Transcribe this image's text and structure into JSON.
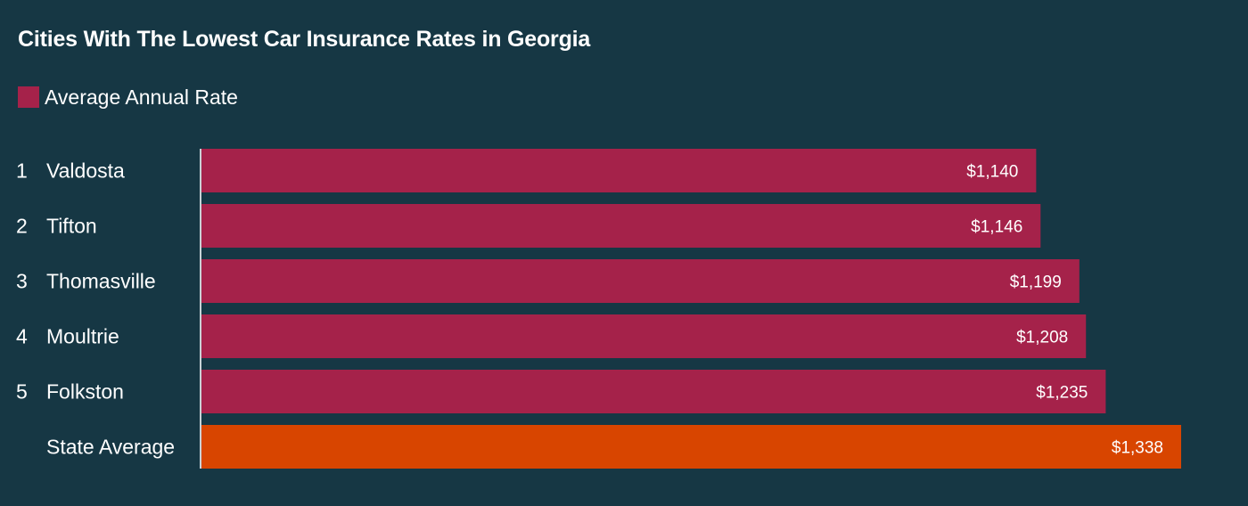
{
  "chart_data": {
    "type": "bar",
    "orientation": "horizontal",
    "title": "Cities With The Lowest Car Insurance Rates in Georgia",
    "legend": [
      {
        "label": "Average Annual Rate",
        "color": "#a5224a"
      }
    ],
    "legend_placement": "top-left",
    "grid": false,
    "categories": [
      "Valdosta",
      "Tifton",
      "Thomasville",
      "Moultrie",
      "Folkston",
      "State Average"
    ],
    "ranks": [
      "1",
      "2",
      "3",
      "4",
      "5",
      ""
    ],
    "values": [
      1140,
      1146,
      1199,
      1208,
      1235,
      1338
    ],
    "value_labels": [
      "$1,140",
      "$1,146",
      "$1,199",
      "$1,208",
      "$1,235",
      "$1,338"
    ],
    "bar_colors": [
      "#a5224a",
      "#a5224a",
      "#a5224a",
      "#a5224a",
      "#a5224a",
      "#d84500"
    ],
    "xlim": [
      0,
      1338
    ],
    "xlabel": "",
    "ylabel": ""
  }
}
